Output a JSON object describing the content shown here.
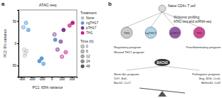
{
  "panels": [
    "a",
    "b"
  ],
  "chart_data": {
    "type": "scatter",
    "title": "ATAC-seq",
    "x_label": "PC1: 65% variance",
    "y_label": "PC2: 6% variance",
    "xlim": [
      -330,
      250
    ],
    "xticks": [
      -300,
      -200,
      -100,
      0,
      100,
      200
    ],
    "ylim": [
      -75,
      75
    ],
    "yticks": [
      -50,
      0,
      50
    ],
    "legend_title": "Treatment",
    "legend": "right",
    "series": [
      {
        "name": "None",
        "color": "#bdbdbd",
        "marker": "circle",
        "x": [
          -275,
          -262,
          -248,
          -268
        ],
        "values": [
          -14,
          -22,
          -17,
          -28
        ],
        "time": [
          0,
          0,
          0,
          0
        ]
      },
      {
        "name": "ngTH17",
        "color": "#5b9bd5",
        "marker": "circle",
        "x": [
          -282,
          -255,
          -232,
          -122,
          -100,
          -82,
          35
        ],
        "values": [
          36,
          46,
          30,
          -40,
          -34,
          -46,
          8
        ],
        "time": [
          6,
          12,
          24,
          48,
          48,
          24,
          48
        ]
      },
      {
        "name": "pTH17",
        "color": "#7b3294",
        "marker": "circle",
        "x": [
          28,
          58,
          90,
          118
        ],
        "values": [
          20,
          -14,
          4,
          30
        ],
        "time": [
          6,
          12,
          24,
          48
        ]
      },
      {
        "name": "TH1",
        "color": "#c51b7d",
        "marker": "circle",
        "x": [
          102,
          140,
          178,
          208
        ],
        "values": [
          -30,
          -20,
          40,
          46
        ],
        "time": [
          6,
          12,
          24,
          48
        ]
      }
    ],
    "time_legend": {
      "title": "Time (h)",
      "values": [
        0,
        6,
        12,
        24,
        48
      ]
    }
  },
  "diagram": {
    "top": "Naive CD4+ T cell",
    "profiling": [
      "Multiomic profiling:",
      "ATAC-seq and scRNA-seq"
    ],
    "cells": [
      {
        "label": "TH0",
        "color": "#bdbdbd"
      },
      {
        "label": "ngTH17",
        "color": "#9ecae1"
      },
      {
        "label": "pTH17",
        "color": "#7b3294"
      },
      {
        "label": "TH1",
        "color": "#c51b7d"
      }
    ],
    "programs": [
      "Regulatory program",
      "Shared TH17 program",
      "Proinflammatory program"
    ],
    "hub": "BACH2",
    "stem": [
      "Stem-like program:",
      "Tcf7, Sell,",
      "Bach2, Ccr7"
    ],
    "pathogenic": [
      "Pathogenic program:",
      "Ifng, Il23r, Ccr6,",
      "Bhlhe40, Csf2"
    ]
  }
}
